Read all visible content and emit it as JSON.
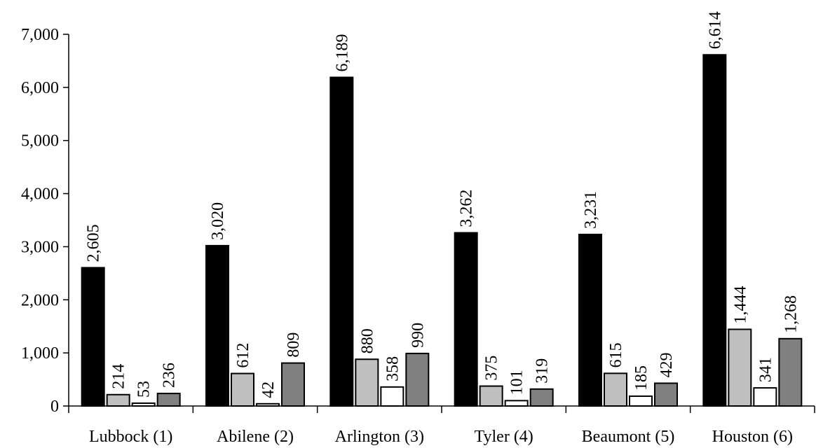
{
  "chart_data": {
    "type": "bar",
    "categories": [
      "Lubbock (1)",
      "Abilene (2)",
      "Arlington (3)",
      "Tyler (4)",
      "Beaumont (5)",
      "Houston (6)"
    ],
    "series": [
      {
        "values": [
          2605,
          3020,
          6189,
          3262,
          3231,
          6614
        ],
        "labels": [
          "2,605",
          "3,020",
          "6,189",
          "3,262",
          "3,231",
          "6,614"
        ],
        "color": "#000000"
      },
      {
        "values": [
          214,
          612,
          880,
          375,
          615,
          1444
        ],
        "labels": [
          "214",
          "612",
          "880",
          "375",
          "615",
          "1,444"
        ],
        "color": "#c0c0c0"
      },
      {
        "values": [
          53,
          42,
          358,
          101,
          185,
          341
        ],
        "labels": [
          "53",
          "42",
          "358",
          "101",
          "185",
          "341"
        ],
        "color": "#ffffff"
      },
      {
        "values": [
          236,
          809,
          990,
          319,
          429,
          1268
        ],
        "labels": [
          "236",
          "809",
          "990",
          "319",
          "429",
          "1,268"
        ],
        "color": "#808080"
      }
    ],
    "yticks": [
      0,
      1000,
      2000,
      3000,
      4000,
      5000,
      6000,
      7000
    ],
    "ytick_labels": [
      "0",
      "1,000",
      "2,000",
      "3,000",
      "4,000",
      "5,000",
      "6,000",
      "7,000"
    ],
    "ylim": [
      0,
      7000
    ],
    "grid": false,
    "legend": false
  }
}
